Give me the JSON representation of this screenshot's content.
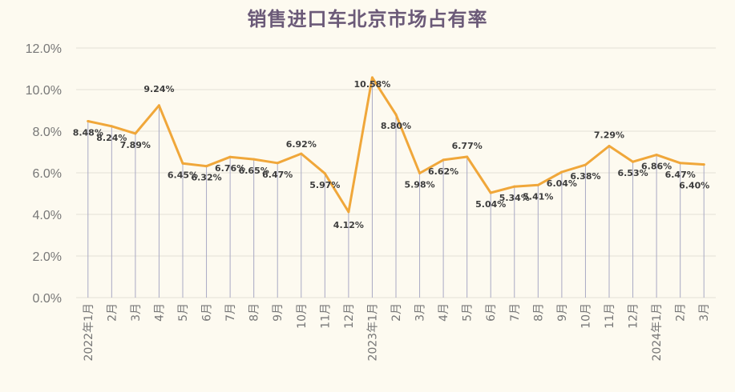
{
  "colors": {
    "line": "#f0a73a",
    "drop": "#a9a9c4",
    "grid": "#e3e0d6",
    "title": "#6b5a78"
  },
  "chart_data": {
    "type": "line",
    "title": "销售进口车北京市场占有率",
    "xlabel": "",
    "ylabel": "",
    "ylim": [
      0,
      12
    ],
    "grid": true,
    "categories": [
      "2022年1月",
      "2月",
      "3月",
      "4月",
      "5月",
      "6月",
      "7月",
      "8月",
      "9月",
      "10月",
      "11月",
      "12月",
      "2023年1月",
      "2月",
      "3月",
      "4月",
      "5月",
      "6月",
      "7月",
      "8月",
      "9月",
      "10月",
      "11月",
      "12月",
      "2024年1月",
      "2月",
      "3月"
    ],
    "values": [
      8.48,
      8.24,
      7.89,
      9.24,
      6.45,
      6.32,
      6.76,
      6.65,
      6.47,
      6.92,
      5.97,
      4.12,
      10.58,
      8.8,
      5.98,
      6.62,
      6.77,
      5.04,
      5.34,
      5.41,
      6.04,
      6.38,
      7.29,
      6.53,
      6.86,
      6.47,
      6.4
    ],
    "data_labels": [
      "8.48%",
      "8.24%",
      "7.89%",
      "9.24%",
      "6.45%",
      "6.32%",
      "6.76%",
      "6.65%",
      "6.47%",
      "6.92%",
      "5.97%",
      "4.12%",
      "10.58%",
      "8.80%",
      "5.98%",
      "6.62%",
      "6.77%",
      "5.04%",
      "5.34%",
      "5.41%",
      "6.04%",
      "6.38%",
      "7.29%",
      "6.53%",
      "6.86%",
      "6.47%",
      "6.40%"
    ],
    "y_ticks": [
      0,
      2,
      4,
      6,
      8,
      10,
      12
    ],
    "y_tick_labels": [
      "0.0%",
      "2.0%",
      "4.0%",
      "6.0%",
      "8.0%",
      "10.0%",
      "12.0%"
    ]
  }
}
